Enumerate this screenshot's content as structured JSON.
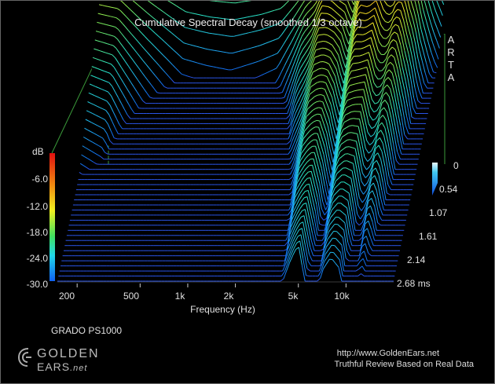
{
  "chart_data": {
    "type": "waterfall",
    "title": "Cumulative Spectral Decay (smoothed 1/3 octave)",
    "software": "ARTA",
    "device": "GRADO PS1000",
    "xlabel": "Frequency (Hz)",
    "zlabel": "dB",
    "x_scale": "log",
    "x_ticks": [
      "200",
      "500",
      "1k",
      "2k",
      "5k",
      "10k"
    ],
    "x_tick_values": [
      200,
      500,
      1000,
      2000,
      5000,
      10000
    ],
    "x_range_hz": [
      150,
      20000
    ],
    "z_ticks": [
      "-6.0",
      "-12.0",
      "-18.0",
      "-24.0",
      "-30.0"
    ],
    "z_range_db": [
      -30,
      0
    ],
    "time_ticks": [
      "0",
      "0.54",
      "1.07",
      "1.61",
      "2.14",
      "2.68 ms"
    ],
    "time_values_ms": [
      0,
      0.54,
      1.07,
      1.61,
      2.14,
      2.68
    ],
    "num_slices": 50,
    "initial_response_db": {
      "freq_hz": [
        150,
        200,
        300,
        500,
        700,
        1000,
        1500,
        2000,
        2500,
        3000,
        3500,
        4000,
        4500,
        5000,
        5500,
        6000,
        7000,
        8000,
        9000,
        10000,
        11000,
        12000,
        13000,
        14000,
        15000,
        16000,
        18000,
        20000
      ],
      "level_db": [
        -5,
        -5,
        -6,
        -7,
        -7.5,
        -7.5,
        -7.5,
        -7,
        -7,
        -6.5,
        -6,
        -3,
        -5,
        -8,
        -7,
        -9,
        -1,
        -3,
        0,
        -2,
        -4,
        -2,
        -1,
        -5,
        -7,
        -11,
        -17,
        -21
      ]
    },
    "decay_rate_db_per_ms": {
      "freq_hz": [
        150,
        200,
        300,
        500,
        1000,
        2000,
        3000,
        4000,
        5000,
        6000,
        7000,
        8000,
        9000,
        10000,
        12000,
        14000,
        16000,
        20000
      ],
      "rate": [
        16,
        18,
        30,
        45,
        50,
        42,
        18,
        10,
        5,
        12,
        10,
        8,
        10,
        14,
        10,
        14,
        20,
        25
      ]
    }
  },
  "watermark": {
    "logo_line1": "GOLDEN",
    "logo_line2": "EARS",
    "logo_suffix": ".net",
    "url": "http://www.GoldenEars.net",
    "tagline": "Truthful Review Based on Real Data"
  },
  "colors": {
    "background": "#000000",
    "frame": "#3a9a3a",
    "floor": "#2a55e8"
  }
}
